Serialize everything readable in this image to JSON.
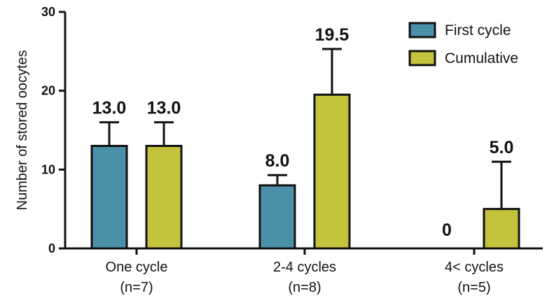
{
  "chart_data": {
    "type": "bar",
    "title": "",
    "xlabel": "",
    "ylabel": "Number of stored oocytes",
    "ylim": [
      0,
      30
    ],
    "yticks": [
      0,
      10,
      20,
      30
    ],
    "grid": false,
    "legend_position": "top-right",
    "categories": [
      {
        "line1": "One cycle",
        "line2": "(n=7)"
      },
      {
        "line1": "2-4 cycles",
        "line2": "(n=8)"
      },
      {
        "line1": "4< cycles",
        "line2": "(n=5)"
      }
    ],
    "series": [
      {
        "name": "First cycle",
        "color": "#4a90a8",
        "values": [
          13.0,
          8.0,
          0
        ],
        "error_upper": [
          16.0,
          9.3,
          0
        ],
        "labels": [
          "13.0",
          "8.0",
          "0"
        ]
      },
      {
        "name": "Cumulative",
        "color": "#c4c43c",
        "values": [
          13.0,
          19.5,
          5.0
        ],
        "error_upper": [
          16.0,
          25.3,
          11.0
        ],
        "labels": [
          "13.0",
          "19.5",
          "5.0"
        ]
      }
    ]
  }
}
